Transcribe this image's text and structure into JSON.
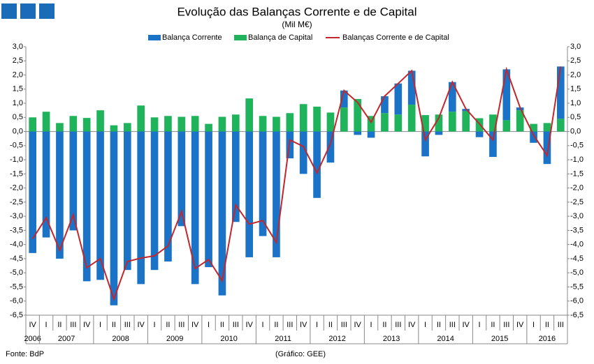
{
  "chart_data": {
    "type": "bar-line",
    "title": "Evolução das Balanças Corrente e de Capital",
    "subtitle": "(Mil M€)",
    "source": "Fonte: BdP",
    "credit": "(Gráfico: GEE)",
    "categories": [
      "IV",
      "I",
      "II",
      "III",
      "IV",
      "I",
      "II",
      "III",
      "IV",
      "I",
      "II",
      "III",
      "IV",
      "I",
      "II",
      "III",
      "IV",
      "I",
      "II",
      "III",
      "IV",
      "I",
      "II",
      "III",
      "IV",
      "I",
      "II",
      "III",
      "IV",
      "I",
      "II",
      "III",
      "IV",
      "I",
      "II",
      "III",
      "IV",
      "I",
      "II",
      "III"
    ],
    "years": [
      "2006",
      "2007",
      "2008",
      "2009",
      "2010",
      "2011",
      "2012",
      "2013",
      "2014",
      "2015",
      "2016"
    ],
    "series": [
      {
        "name": "Balança Corrente",
        "color": "#1a73c6",
        "stacked": true,
        "values": [
          -4.3,
          -3.75,
          -4.5,
          -3.5,
          -5.3,
          -5.25,
          -6.15,
          -4.9,
          -5.4,
          -4.9,
          -4.6,
          -3.35,
          -5.4,
          -4.8,
          -5.8,
          -3.2,
          -4.45,
          -3.7,
          -4.45,
          -0.95,
          -1.5,
          -2.35,
          -1.1,
          0.6,
          -0.12,
          -0.22,
          0.6,
          1.1,
          1.2,
          -0.88,
          -0.12,
          1.05,
          0.08,
          -0.2,
          -0.9,
          1.8,
          0.1,
          -0.4,
          -1.15,
          1.85
        ]
      },
      {
        "name": "Balança de Capital",
        "color": "#1fb35b",
        "stacked": true,
        "values": [
          0.5,
          0.7,
          0.3,
          0.55,
          0.48,
          0.75,
          0.22,
          0.3,
          0.92,
          0.5,
          0.55,
          0.52,
          0.55,
          0.27,
          0.52,
          0.6,
          1.17,
          0.55,
          0.52,
          0.65,
          0.97,
          0.88,
          0.67,
          0.85,
          1.15,
          0.55,
          0.65,
          0.6,
          0.95,
          0.58,
          0.6,
          0.7,
          0.72,
          0.47,
          0.6,
          0.4,
          0.75,
          0.27,
          0.3,
          0.45
        ]
      },
      {
        "name": "Balanças Corrente e de Capital",
        "color": "#c1272d",
        "kind": "line",
        "values": [
          -3.8,
          -3.05,
          -4.2,
          -2.95,
          -4.82,
          -4.5,
          -5.93,
          -4.6,
          -4.48,
          -4.4,
          -4.05,
          -2.83,
          -4.85,
          -4.53,
          -5.28,
          -2.6,
          -3.28,
          -3.15,
          -3.93,
          -0.3,
          -0.53,
          -1.47,
          -0.43,
          1.45,
          1.03,
          0.33,
          1.25,
          1.7,
          2.15,
          -0.3,
          0.48,
          1.75,
          0.8,
          0.27,
          -0.3,
          2.2,
          0.85,
          -0.13,
          -0.85,
          2.3
        ]
      }
    ],
    "ylim": [
      -6.5,
      3
    ],
    "yticks": [
      {
        "value": 3,
        "label": "3,0"
      },
      {
        "value": 2.5,
        "label": "2,5"
      },
      {
        "value": 2,
        "label": "2,0"
      },
      {
        "value": 1.5,
        "label": "1,5"
      },
      {
        "value": 1,
        "label": "1,0"
      },
      {
        "value": 0.5,
        "label": "0,5"
      },
      {
        "value": 0,
        "label": "0,0"
      },
      {
        "value": -0.5,
        "label": "-0,5"
      },
      {
        "value": -1,
        "label": "-1,0"
      },
      {
        "value": -1.5,
        "label": "-1,5"
      },
      {
        "value": -2,
        "label": "-2,0"
      },
      {
        "value": -2.5,
        "label": "-2,5"
      },
      {
        "value": -3,
        "label": "-3,0"
      },
      {
        "value": -3.5,
        "label": "-3,5"
      },
      {
        "value": -4,
        "label": "-4,0"
      },
      {
        "value": -4.5,
        "label": "-4,5"
      },
      {
        "value": -5,
        "label": "-5,0"
      },
      {
        "value": -5.5,
        "label": "-5,5"
      },
      {
        "value": -6,
        "label": "-6,0"
      },
      {
        "value": -6.5,
        "label": "-6,5"
      }
    ],
    "y2lim": [
      -6.5,
      3
    ],
    "y2ticks": [
      {
        "value": 3,
        "label": "3,0"
      },
      {
        "value": 2.5,
        "label": "2,5"
      },
      {
        "value": 2,
        "label": "2,0"
      },
      {
        "value": 1.5,
        "label": "1,5"
      },
      {
        "value": 1,
        "label": "1,0"
      },
      {
        "value": 0.5,
        "label": "0,5"
      },
      {
        "value": 0,
        "label": "0,0"
      },
      {
        "value": -0.5,
        "label": "-0,5"
      },
      {
        "value": -1,
        "label": "-1,0"
      },
      {
        "value": -1.5,
        "label": "-1,5"
      },
      {
        "value": -2,
        "label": "-2,0"
      },
      {
        "value": -2.5,
        "label": "-2,5"
      },
      {
        "value": -3,
        "label": "-3,0"
      },
      {
        "value": -3.5,
        "label": "-3,5"
      },
      {
        "value": -4,
        "label": "-4,0"
      },
      {
        "value": -4.5,
        "label": "-4,5"
      },
      {
        "value": -5,
        "label": "-5,0"
      },
      {
        "value": -5.5,
        "label": "-5,5"
      },
      {
        "value": -6,
        "label": "-6,0"
      },
      {
        "value": -6.5,
        "label": "-6,5"
      }
    ],
    "grid": false
  }
}
